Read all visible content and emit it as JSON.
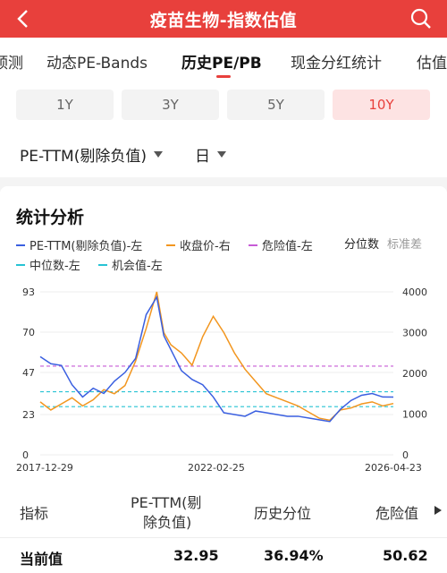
{
  "header": {
    "title": "疫苗生物-指数估值"
  },
  "tabs": [
    {
      "label": "预测"
    },
    {
      "label": "动态PE-Bands"
    },
    {
      "label": "历史PE/PB"
    },
    {
      "label": "现金分红统计"
    },
    {
      "label": "估值"
    }
  ],
  "periods": [
    {
      "label": "1Y"
    },
    {
      "label": "3Y"
    },
    {
      "label": "5Y"
    },
    {
      "label": "10Y"
    }
  ],
  "selects": {
    "metric": "PE-TTM(剔除负值)",
    "freq": "日"
  },
  "stats": {
    "title": "统计分析",
    "legend": {
      "pe": "PE-TTM(剔除负值)-左",
      "close": "收盘价-右",
      "danger": "危险值-左",
      "median": "中位数-左",
      "chance": "机会值-左"
    },
    "toggle_active": "分位数",
    "toggle_inactive": "标准差"
  },
  "colors": {
    "accent": "#e8403c",
    "pe": "#3a5fe0",
    "close": "#f2961f",
    "danger": "#c75bd6",
    "median": "#27c3d4",
    "chance": "#27c3d4"
  },
  "chart_data": {
    "type": "line",
    "x_labels": [
      "2017-12-29",
      "2022-02-25",
      "2026-04-23"
    ],
    "y_left_ticks": [
      "93",
      "70",
      "47",
      "23",
      "0"
    ],
    "y_right_ticks": [
      "4000",
      "3000",
      "2000",
      "1000",
      "0"
    ],
    "ylim_left": [
      0,
      93
    ],
    "ylim_right": [
      0,
      4000
    ],
    "reference_lines": {
      "danger": 50.62,
      "median": 36,
      "chance": 27.5
    },
    "x": [
      0,
      0.03,
      0.06,
      0.09,
      0.12,
      0.15,
      0.18,
      0.21,
      0.24,
      0.27,
      0.3,
      0.33,
      0.35,
      0.37,
      0.4,
      0.43,
      0.46,
      0.49,
      0.52,
      0.55,
      0.58,
      0.61,
      0.64,
      0.67,
      0.7,
      0.73,
      0.76,
      0.79,
      0.82,
      0.85,
      0.88,
      0.91,
      0.94,
      0.97,
      1.0
    ],
    "series": [
      {
        "name": "PE-TTM(剔除负值)-左",
        "values": [
          56,
          52,
          51,
          40,
          33,
          38,
          35,
          42,
          47,
          55,
          80,
          90,
          68,
          60,
          48,
          43,
          40,
          33,
          24,
          23,
          22,
          25,
          24,
          23,
          22,
          22,
          21,
          20,
          19,
          26,
          31,
          34,
          35,
          33,
          32.95
        ]
      },
      {
        "name": "收盘价-右",
        "values": [
          1300,
          1100,
          1250,
          1400,
          1200,
          1350,
          1600,
          1500,
          1700,
          2300,
          3100,
          4000,
          3000,
          2700,
          2500,
          2200,
          2900,
          3400,
          3000,
          2500,
          2100,
          1800,
          1500,
          1400,
          1300,
          1200,
          1050,
          900,
          850,
          1100,
          1150,
          1250,
          1300,
          1200,
          1260
        ]
      }
    ]
  },
  "table": {
    "headers": [
      "指标",
      "PE-TTM(剔",
      "除负值)",
      "历史分位",
      "危险值"
    ],
    "row": {
      "label": "当前值",
      "pe": "32.95",
      "percentile": "36.94%",
      "danger": "50.62"
    }
  }
}
